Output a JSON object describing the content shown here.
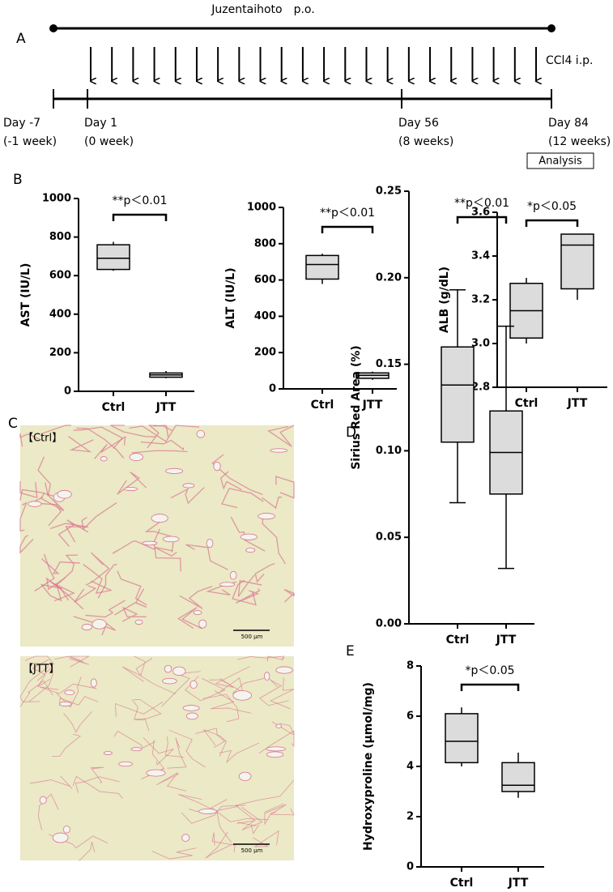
{
  "panels": {
    "a": "A",
    "b": "B",
    "c": "C",
    "d": "D",
    "e": "E"
  },
  "timeline": {
    "treatment": "Juzentaihoto　p.o.",
    "injection": "CCl4 i.p.",
    "days": [
      {
        "day": "Day -7",
        "week": "(-1 week)"
      },
      {
        "day": "Day 1",
        "week": "(0 week)"
      },
      {
        "day": "Day 56",
        "week": "(8 weeks)"
      },
      {
        "day": "Day 84",
        "week": "(12 weeks)"
      }
    ],
    "analysis": "Analysis"
  },
  "images": [
    {
      "label": "【Ctrl】",
      "scale": "500 μm"
    },
    {
      "label": "【JTT】",
      "scale": "500 μm"
    }
  ],
  "chart_data": [
    {
      "type": "box",
      "ylabel": "AST (IU/L)",
      "annotation": "**p＜0.01",
      "categories": [
        "Ctrl",
        "JTT"
      ],
      "boxes": [
        {
          "min": 625,
          "q1": 632,
          "median": 690,
          "q3": 760,
          "max": 775
        },
        {
          "min": 68,
          "q1": 73,
          "median": 85,
          "q3": 95,
          "max": 105
        }
      ],
      "ylim": [
        0,
        1000
      ],
      "yticks": [
        0,
        200,
        400,
        600,
        800,
        1000
      ],
      "color": "#dcdcdc",
      "caps": false
    },
    {
      "type": "box",
      "ylabel": "ALT (IU/L)",
      "annotation": "**p＜0.01",
      "categories": [
        "Ctrl",
        "JTT"
      ],
      "boxes": [
        {
          "min": 578,
          "q1": 605,
          "median": 685,
          "q3": 735,
          "max": 745
        },
        {
          "min": 50,
          "q1": 58,
          "median": 75,
          "q3": 88,
          "max": 95
        }
      ],
      "ylim": [
        0,
        1000
      ],
      "yticks": [
        0,
        200,
        400,
        600,
        800,
        1000
      ],
      "color": "#dcdcdc",
      "caps": false
    },
    {
      "type": "box",
      "ylabel": "ALB (g/dL)",
      "annotation": "*p＜0.05",
      "categories": [
        "Ctrl",
        "JTT"
      ],
      "boxes": [
        {
          "min": 3.0,
          "q1": 3.025,
          "median": 3.15,
          "q3": 3.275,
          "max": 3.3
        },
        {
          "min": 3.2,
          "q1": 3.25,
          "median": 3.45,
          "q3": 3.5,
          "max": 3.5
        }
      ],
      "ylim": [
        2.8,
        3.6
      ],
      "yticks": [
        2.8,
        {
          "value": 3,
          "label": "3.0"
        },
        3.2,
        3.4,
        3.6
      ],
      "color": "#dcdcdc",
      "caps": false
    },
    {
      "type": "box",
      "ylabel": "Sirius Red Area (%)",
      "annotation": "**p＜0.01",
      "categories": [
        "Ctrl",
        "JTT"
      ],
      "boxes": [
        {
          "min": 0.07,
          "q1": 0.105,
          "median": 0.138,
          "q3": 0.16,
          "max": 0.193
        },
        {
          "min": 0.032,
          "q1": 0.075,
          "median": 0.099,
          "q3": 0.123,
          "max": 0.172
        }
      ],
      "ylim": [
        0,
        0.25
      ],
      "yticks": [
        {
          "value": 0,
          "label": "0.00"
        },
        0.05,
        {
          "value": 0.1,
          "label": "0.10"
        },
        0.15,
        {
          "value": 0.2,
          "label": "0.20"
        },
        0.25
      ],
      "color": "#dcdcdc",
      "caps": true
    },
    {
      "type": "box",
      "ylabel": "Hydroxyproline (μmol/mg)",
      "annotation": "*p＜0.05",
      "categories": [
        "Ctrl",
        "JTT"
      ],
      "boxes": [
        {
          "min": 4.0,
          "q1": 4.15,
          "median": 5.0,
          "q3": 6.1,
          "max": 6.35
        },
        {
          "min": 2.75,
          "q1": 3.0,
          "median": 3.25,
          "q3": 4.15,
          "max": 4.55
        }
      ],
      "ylim": [
        0,
        8
      ],
      "yticks": [
        0,
        2,
        4,
        6,
        8
      ],
      "color": "#dcdcdc",
      "caps": false
    }
  ]
}
